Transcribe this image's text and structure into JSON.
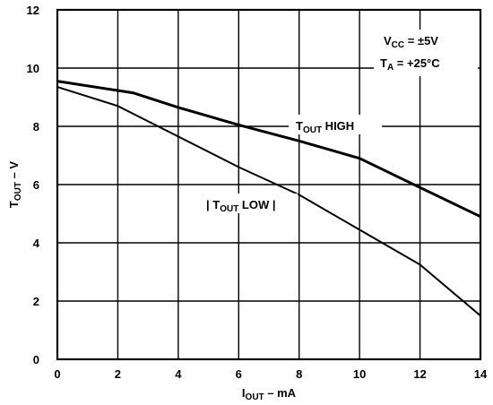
{
  "chart_data": {
    "type": "line",
    "x_axis": {
      "label_main": "I",
      "label_sub": "OUT",
      "label_rest": " – mA",
      "range": [
        0,
        14
      ],
      "ticks": [
        0,
        2,
        4,
        6,
        8,
        10,
        12,
        14
      ]
    },
    "y_axis": {
      "label_main": "T",
      "label_sub": "OUT",
      "label_rest": " – V",
      "range": [
        0,
        12
      ],
      "ticks": [
        0,
        2,
        4,
        6,
        8,
        10,
        12
      ]
    },
    "grid": true,
    "annotations": {
      "vcc_main": "V",
      "vcc_sub": "CC",
      "vcc_rest": " = ±5V",
      "ta_main": "T",
      "ta_sub": "A",
      "ta_rest": " = +25°C"
    },
    "series": [
      {
        "label_main": "T",
        "label_sub": "OUT",
        "label_rest": " HIGH",
        "label_prefix": "",
        "label_suffix": "",
        "stroke_width": 3,
        "points": [
          [
            0,
            9.55
          ],
          [
            2.5,
            9.15
          ],
          [
            4,
            8.65
          ],
          [
            6,
            8.05
          ],
          [
            8,
            7.5
          ],
          [
            10,
            6.9
          ],
          [
            12,
            5.9
          ],
          [
            14,
            4.9
          ]
        ]
      },
      {
        "label_main": "T",
        "label_sub": "OUT",
        "label_rest": " LOW",
        "label_prefix": "| ",
        "label_suffix": " |",
        "stroke_width": 2,
        "points": [
          [
            0,
            9.35
          ],
          [
            2,
            8.7
          ],
          [
            4,
            7.65
          ],
          [
            6,
            6.6
          ],
          [
            8,
            5.65
          ],
          [
            10,
            4.45
          ],
          [
            12,
            3.25
          ],
          [
            14,
            1.5
          ]
        ]
      }
    ]
  }
}
